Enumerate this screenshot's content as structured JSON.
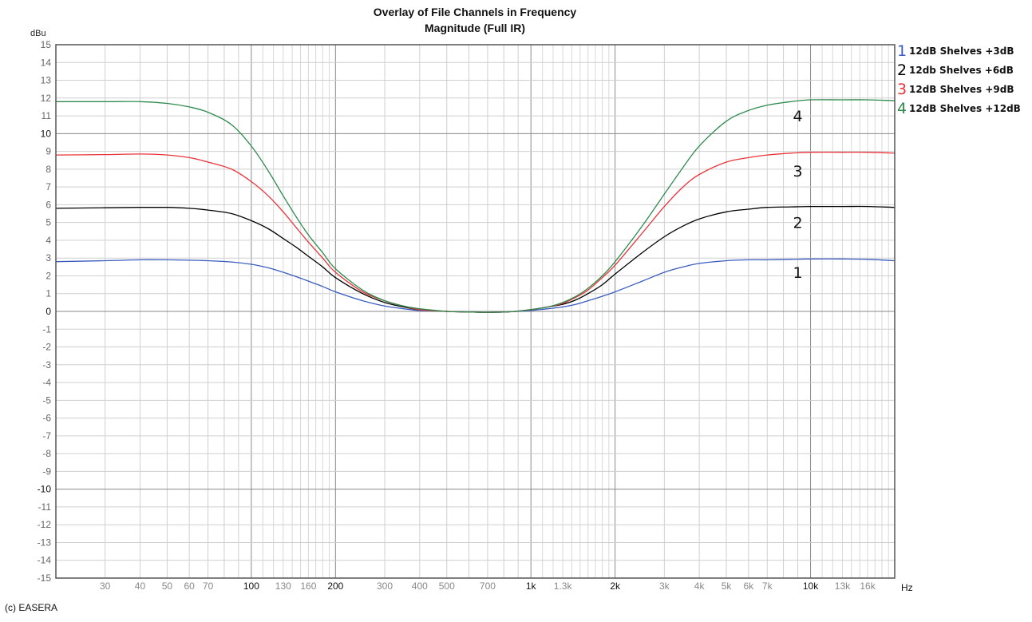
{
  "title": {
    "line1": "Overlay of File Channels in Frequency",
    "line2": "Magnitude (Full IR)"
  },
  "axes": {
    "y_unit": "dBu",
    "x_unit": "Hz"
  },
  "footer": {
    "copyright": "(c) EASERA"
  },
  "legend": [
    {
      "number": "1",
      "label": "12dB Shelves +3dB",
      "color": "#3a5bbf"
    },
    {
      "number": "2",
      "label": "12db Shelves +6dB",
      "color": "#000000"
    },
    {
      "number": "3",
      "label": "12dB Shelves +9dB",
      "color": "#e8343a"
    },
    {
      "number": "4",
      "label": "12dB Shelves +12dB",
      "color": "#2e8a4e"
    }
  ],
  "chart_data": {
    "type": "line",
    "title": "Overlay of File Channels in Frequency Magnitude (Full IR)",
    "xlabel": "Hz",
    "ylabel": "dBu",
    "xscale": "log",
    "xlim": [
      20,
      20000
    ],
    "ylim": [
      -15,
      15
    ],
    "grid": true,
    "legend_position": "right",
    "x_tick_labels": [
      "30",
      "40",
      "50",
      "60",
      "70",
      "100",
      "130",
      "160",
      "200",
      "300",
      "400",
      "500",
      "700",
      "1k",
      "1.3k",
      "2k",
      "3k",
      "4k",
      "5k",
      "6k",
      "7k",
      "10k",
      "13k",
      "16k"
    ],
    "x_tick_values": [
      30,
      40,
      50,
      60,
      70,
      100,
      130,
      160,
      200,
      300,
      400,
      500,
      700,
      1000,
      1300,
      2000,
      3000,
      4000,
      5000,
      6000,
      7000,
      10000,
      13000,
      16000
    ],
    "x_major_ticks": [
      100,
      200,
      1000,
      2000,
      10000
    ],
    "y_ticks": [
      15,
      14,
      13,
      12,
      11,
      10,
      9,
      8,
      7,
      6,
      5,
      4,
      3,
      2,
      1,
      0,
      -1,
      -2,
      -3,
      -4,
      -5,
      -6,
      -7,
      -8,
      -9,
      -10,
      -11,
      -12,
      -13,
      -14,
      -15
    ],
    "y_major_ticks": [
      10,
      0,
      -10
    ],
    "x": [
      20,
      30,
      40,
      50,
      60,
      70,
      85,
      100,
      115,
      130,
      145,
      160,
      180,
      200,
      250,
      300,
      350,
      400,
      500,
      600,
      700,
      850,
      1000,
      1150,
      1300,
      1450,
      1600,
      1800,
      2000,
      2500,
      3000,
      3500,
      4000,
      5000,
      6000,
      7000,
      8500,
      10000,
      13000,
      16000,
      20000
    ],
    "series": [
      {
        "name": "12dB Shelves +3dB",
        "label_marker": "1",
        "color": "#3a5bbf",
        "values": [
          2.8,
          2.85,
          2.9,
          2.9,
          2.88,
          2.85,
          2.78,
          2.65,
          2.45,
          2.2,
          1.95,
          1.7,
          1.4,
          1.1,
          0.6,
          0.3,
          0.15,
          0.05,
          0.0,
          -0.03,
          -0.05,
          -0.02,
          0.05,
          0.15,
          0.25,
          0.4,
          0.6,
          0.85,
          1.1,
          1.7,
          2.2,
          2.5,
          2.7,
          2.85,
          2.9,
          2.9,
          2.93,
          2.95,
          2.95,
          2.93,
          2.85
        ]
      },
      {
        "name": "12db Shelves +6dB",
        "label_marker": "2",
        "color": "#000000",
        "values": [
          5.8,
          5.83,
          5.85,
          5.85,
          5.8,
          5.7,
          5.5,
          5.1,
          4.65,
          4.1,
          3.6,
          3.1,
          2.5,
          1.9,
          1.0,
          0.5,
          0.25,
          0.1,
          0.0,
          -0.03,
          -0.05,
          -0.02,
          0.1,
          0.25,
          0.4,
          0.65,
          1.0,
          1.5,
          2.1,
          3.3,
          4.2,
          4.8,
          5.2,
          5.6,
          5.75,
          5.85,
          5.88,
          5.9,
          5.9,
          5.9,
          5.85
        ]
      },
      {
        "name": "12dB Shelves +9dB",
        "label_marker": "3",
        "color": "#e8343a",
        "values": [
          8.8,
          8.82,
          8.85,
          8.8,
          8.65,
          8.4,
          8.0,
          7.3,
          6.5,
          5.6,
          4.7,
          3.9,
          3.0,
          2.2,
          1.1,
          0.6,
          0.3,
          0.1,
          0.0,
          -0.03,
          -0.05,
          -0.02,
          0.1,
          0.25,
          0.45,
          0.8,
          1.2,
          1.9,
          2.6,
          4.4,
          5.9,
          7.0,
          7.7,
          8.4,
          8.65,
          8.8,
          8.9,
          8.95,
          8.95,
          8.95,
          8.9
        ]
      },
      {
        "name": "12dB Shelves +12dB",
        "label_marker": "4",
        "color": "#2e8a4e",
        "values": [
          11.8,
          11.8,
          11.8,
          11.7,
          11.5,
          11.2,
          10.5,
          9.3,
          7.9,
          6.5,
          5.3,
          4.3,
          3.3,
          2.4,
          1.2,
          0.6,
          0.3,
          0.15,
          0.0,
          -0.03,
          -0.05,
          -0.02,
          0.1,
          0.25,
          0.5,
          0.85,
          1.3,
          2.0,
          2.8,
          4.8,
          6.6,
          8.1,
          9.3,
          10.7,
          11.3,
          11.6,
          11.8,
          11.9,
          11.9,
          11.9,
          11.85
        ]
      }
    ],
    "annotations": [
      {
        "text": "4",
        "x": 9000,
        "y": 11.0
      },
      {
        "text": "3",
        "x": 9000,
        "y": 7.9
      },
      {
        "text": "2",
        "x": 9000,
        "y": 5.0
      },
      {
        "text": "1",
        "x": 9000,
        "y": 2.2
      }
    ]
  }
}
